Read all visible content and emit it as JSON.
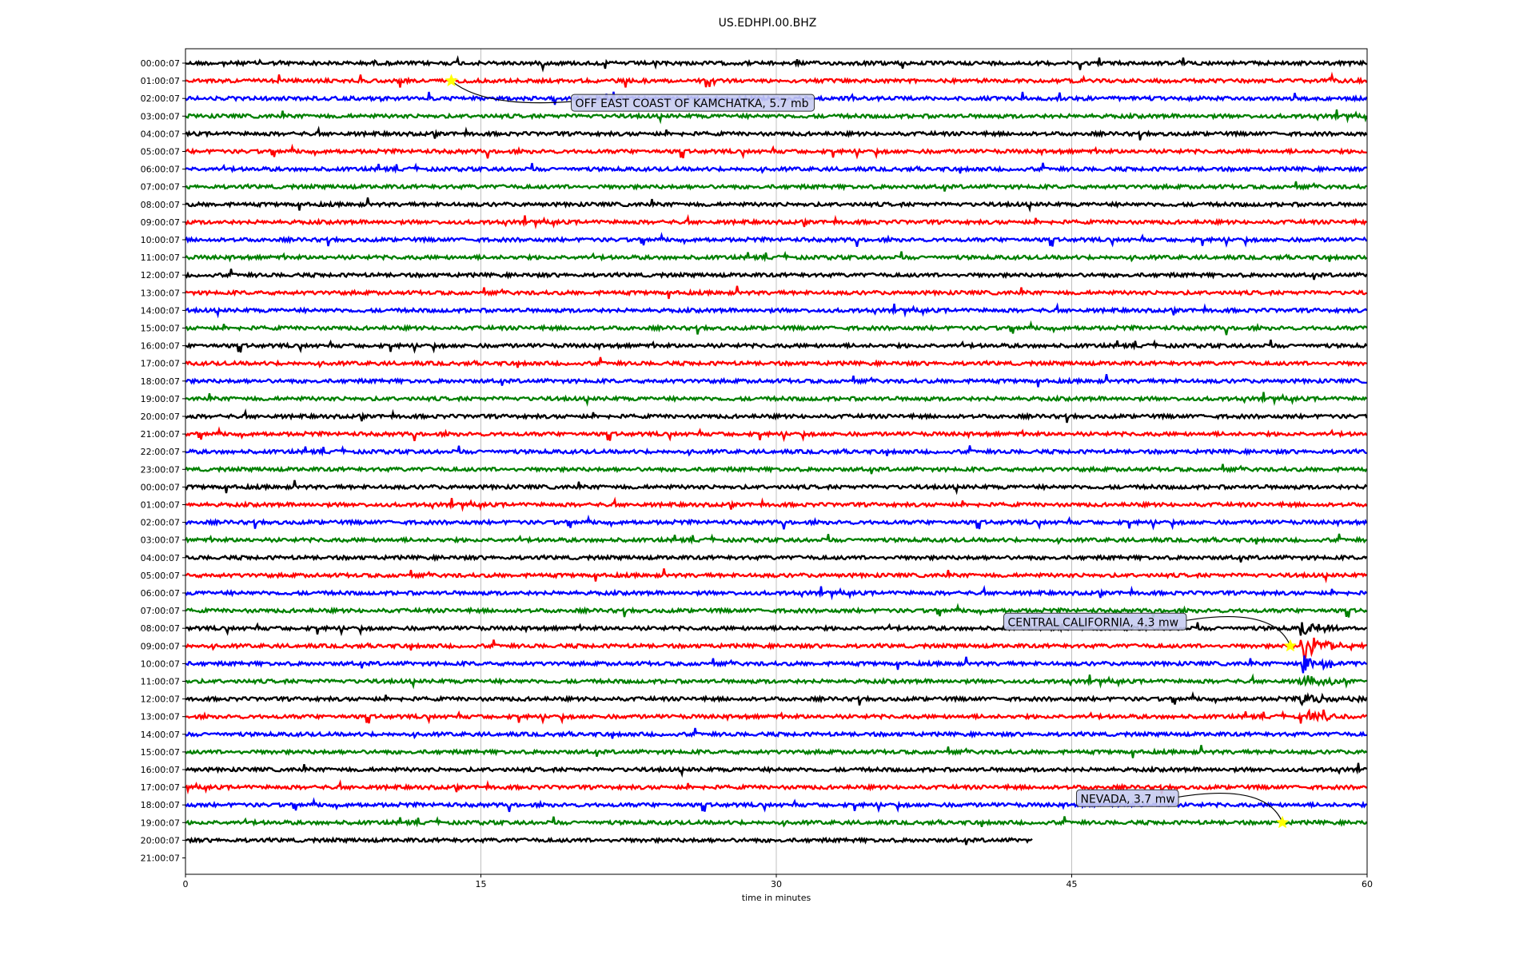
{
  "chart_data": {
    "type": "line",
    "title": "US.EDHPI.00.BHZ",
    "xlabel": "time in minutes",
    "ylabel": "",
    "xlim": [
      0,
      60
    ],
    "xticks": [
      0,
      15,
      30,
      45,
      60
    ],
    "grid": "vertical",
    "trace_colors": [
      "#000000",
      "#ff0000",
      "#0000ff",
      "#008000"
    ],
    "rows": [
      "00:00:07",
      "01:00:07",
      "02:00:07",
      "03:00:07",
      "04:00:07",
      "05:00:07",
      "06:00:07",
      "07:00:07",
      "08:00:07",
      "09:00:07",
      "10:00:07",
      "11:00:07",
      "12:00:07",
      "13:00:07",
      "14:00:07",
      "15:00:07",
      "16:00:07",
      "17:00:07",
      "18:00:07",
      "19:00:07",
      "20:00:07",
      "21:00:07",
      "22:00:07",
      "23:00:07",
      "00:00:07",
      "01:00:07",
      "02:00:07",
      "03:00:07",
      "04:00:07",
      "05:00:07",
      "06:00:07",
      "07:00:07",
      "08:00:07",
      "09:00:07",
      "10:00:07",
      "11:00:07",
      "12:00:07",
      "13:00:07",
      "14:00:07",
      "15:00:07",
      "16:00:07",
      "17:00:07",
      "18:00:07",
      "19:00:07",
      "20:00:07",
      "21:00:07"
    ],
    "last_trace_end_minute": 43,
    "events": [
      {
        "label": "OFF EAST COAST OF KAMCHATKA, 5.7 mb",
        "row": 1,
        "minute": 13.5,
        "label_side": "right"
      },
      {
        "label": "CENTRAL CALIFORNIA, 4.3 mw",
        "row": 33,
        "minute": 56.1,
        "label_side": "left"
      },
      {
        "label": "NEVADA, 3.7 mw",
        "row": 43,
        "minute": 55.7,
        "label_side": "left"
      }
    ],
    "big_arrival_minute": 56.6
  }
}
